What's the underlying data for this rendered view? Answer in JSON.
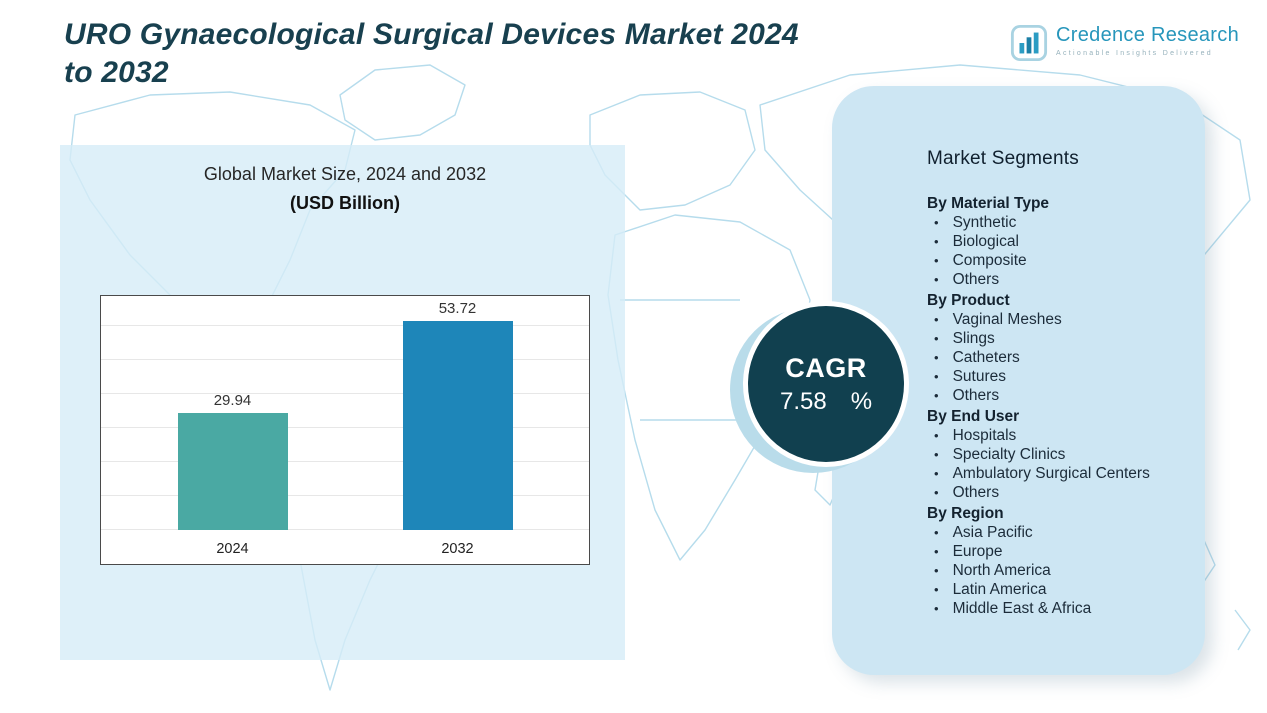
{
  "title": {
    "line1": "URO Gynaecological Surgical Devices Market 2024",
    "line2": "to 2032"
  },
  "logo": {
    "name": "Credence Research",
    "tagline": "Actionable Insights Delivered"
  },
  "chart_data": {
    "type": "bar",
    "title": "Global Market Size, 2024 and 2032",
    "subtitle": "(USD Billion)",
    "categories": [
      "2024",
      "2032"
    ],
    "values": [
      29.94,
      53.72
    ],
    "value_labels": [
      "29.94",
      "53.72"
    ],
    "bar_colors": [
      "#4aa9a3",
      "#1e86b9"
    ],
    "xlabel": "",
    "ylabel": "USD Billion",
    "ylim": [
      0,
      60
    ],
    "grid": true,
    "legend": "none"
  },
  "cagr": {
    "label": "CAGR",
    "value": "7.58",
    "unit": "%"
  },
  "segments": {
    "title": "Market Segments",
    "groups": [
      {
        "heading": "By Material Type",
        "items": [
          "Synthetic",
          "Biological",
          "Composite",
          "Others"
        ]
      },
      {
        "heading": "By Product",
        "items": [
          "Vaginal Meshes",
          "Slings",
          "Catheters",
          "Sutures",
          "Others"
        ]
      },
      {
        "heading": "By End User",
        "items": [
          "Hospitals",
          "Specialty Clinics",
          "Ambulatory Surgical Centers",
          "Others"
        ]
      },
      {
        "heading": "By Region",
        "items": [
          "Asia Pacific",
          "Europe",
          "North America",
          "Latin America",
          "Middle East & Africa"
        ]
      }
    ]
  },
  "colors": {
    "title_text": "#18404f",
    "cagr_circle": "#11404f",
    "panel_bg": "#cde6f3",
    "left_panel_bg": "#d6ecf7",
    "map_outline": "#b6dcec",
    "logo_teal": "#2796bb"
  }
}
